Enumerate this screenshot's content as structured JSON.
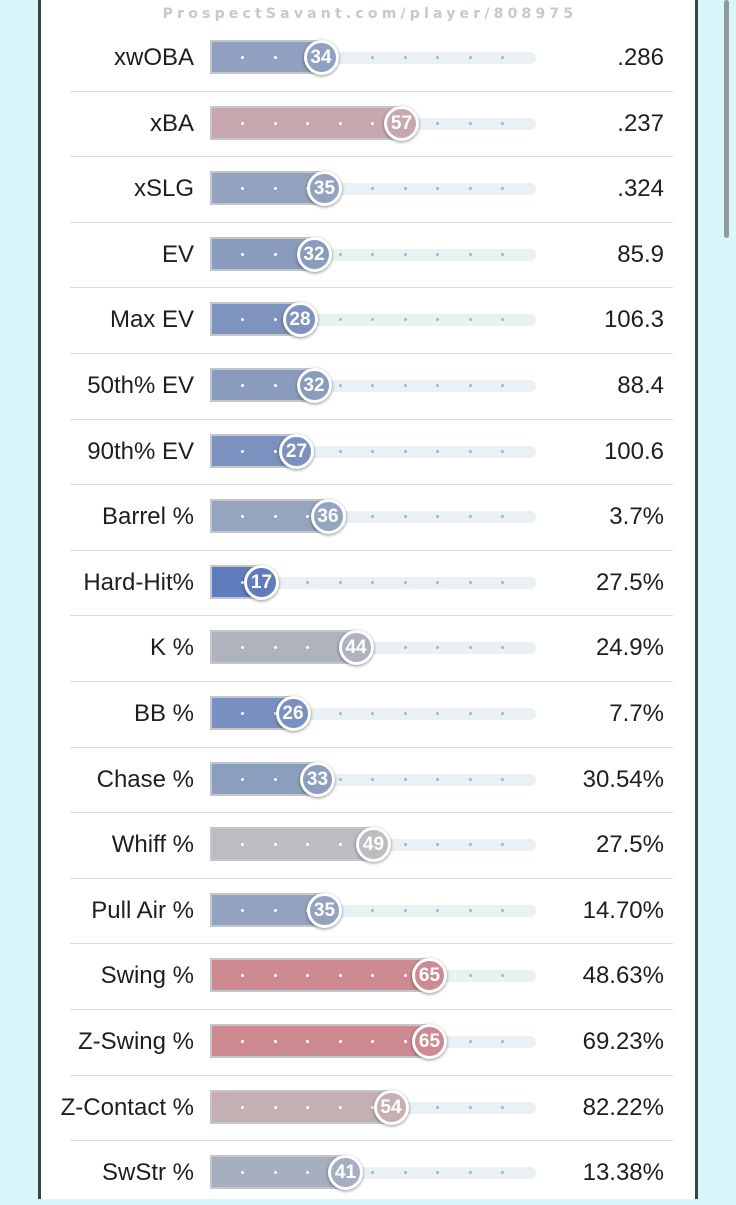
{
  "watermark": "ProspectSavant.com/player/808975",
  "chart_data": {
    "type": "bar",
    "title": "",
    "xlim": [
      0,
      100
    ],
    "metrics": [
      {
        "label": "xwOBA",
        "percentile": 34,
        "value": ".286",
        "color": "#8fa0c0"
      },
      {
        "label": "xBA",
        "percentile": 57,
        "value": ".237",
        "color": "#c7a8ae"
      },
      {
        "label": "xSLG",
        "percentile": 35,
        "value": ".324",
        "color": "#93a3bf"
      },
      {
        "label": "EV",
        "percentile": 32,
        "value": "85.9",
        "color": "#8a9cbe"
      },
      {
        "label": "Max EV",
        "percentile": 28,
        "value": "106.3",
        "color": "#7f93bf"
      },
      {
        "label": "50th% EV",
        "percentile": 32,
        "value": "88.4",
        "color": "#8a9cbe"
      },
      {
        "label": "90th% EV",
        "percentile": 27,
        "value": "100.6",
        "color": "#7c91bf"
      },
      {
        "label": "Barrel %",
        "percentile": 36,
        "value": "3.7%",
        "color": "#95a4bf"
      },
      {
        "label": "Hard-Hit%",
        "percentile": 17,
        "value": "27.5%",
        "color": "#5f7cbd"
      },
      {
        "label": "K %",
        "percentile": 44,
        "value": "24.9%",
        "color": "#aeb3bd"
      },
      {
        "label": "BB %",
        "percentile": 26,
        "value": "7.7%",
        "color": "#7a90c0"
      },
      {
        "label": "Chase %",
        "percentile": 33,
        "value": "30.54%",
        "color": "#8c9ebe"
      },
      {
        "label": "Whiff %",
        "percentile": 49,
        "value": "27.5%",
        "color": "#bdbdc1"
      },
      {
        "label": "Pull Air %",
        "percentile": 35,
        "value": "14.70%",
        "color": "#93a3bf"
      },
      {
        "label": "Swing %",
        "percentile": 65,
        "value": "48.63%",
        "color": "#cd8a91"
      },
      {
        "label": "Z-Swing %",
        "percentile": 65,
        "value": "69.23%",
        "color": "#cd8a91"
      },
      {
        "label": "Z-Contact %",
        "percentile": 54,
        "value": "82.22%",
        "color": "#c5afb3"
      },
      {
        "label": "SwStr %",
        "percentile": 41,
        "value": "13.38%",
        "color": "#a5afc0"
      }
    ]
  }
}
